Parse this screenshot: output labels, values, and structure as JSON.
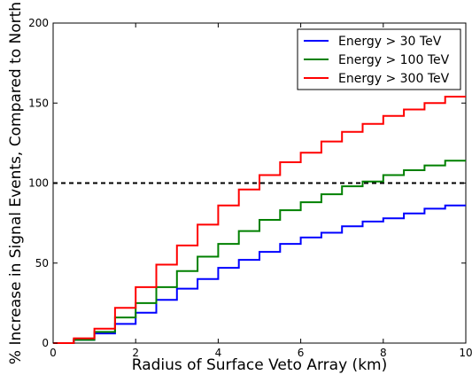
{
  "chart_data": {
    "type": "line",
    "step": true,
    "title": "",
    "xlabel": "Radius of Surface Veto Array (km)",
    "ylabel": "% Increase in Signal Events, Compared to North",
    "xlim": [
      0,
      10
    ],
    "ylim": [
      0,
      200
    ],
    "xticks": [
      0,
      2,
      4,
      6,
      8,
      10
    ],
    "yticks": [
      0,
      50,
      100,
      150,
      200
    ],
    "grid": false,
    "legend_position": "top-right",
    "x": [
      0,
      0.5,
      1,
      1.5,
      2,
      2.5,
      3,
      3.5,
      4,
      4.5,
      5,
      5.5,
      6,
      6.5,
      7,
      7.5,
      8,
      8.5,
      9,
      9.5
    ],
    "series": [
      {
        "name": "Energy > 30 TeV",
        "color": "#0000ff",
        "values": [
          0,
          2,
          6,
          12,
          19,
          27,
          34,
          40,
          47,
          52,
          57,
          62,
          66,
          69,
          73,
          76,
          78,
          81,
          84,
          86
        ]
      },
      {
        "name": "Energy > 100 TeV",
        "color": "#008000",
        "values": [
          0,
          2,
          7,
          16,
          25,
          35,
          45,
          54,
          62,
          70,
          77,
          83,
          88,
          93,
          98,
          101,
          105,
          108,
          111,
          114
        ]
      },
      {
        "name": "Energy > 300 TeV",
        "color": "#ff0000",
        "values": [
          0,
          3,
          9,
          22,
          35,
          49,
          61,
          74,
          86,
          96,
          105,
          113,
          119,
          126,
          132,
          137,
          142,
          146,
          150,
          154
        ]
      }
    ],
    "reference_line": {
      "y": 100,
      "style": "dashed",
      "color": "#000000"
    }
  }
}
